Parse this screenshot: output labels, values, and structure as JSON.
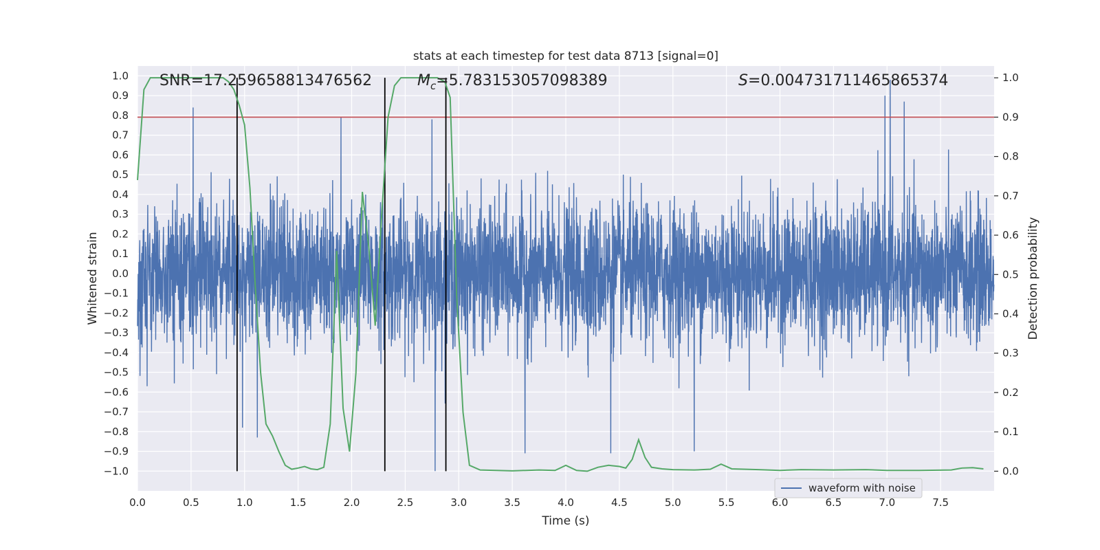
{
  "chart_data": {
    "type": "line",
    "title": "stats at each timestep for test data 8713 [signal=0]",
    "xlabel": "Time (s)",
    "ylabel_left": "Whitened strain",
    "ylabel_right": "Detection probability",
    "xlim": [
      0,
      8
    ],
    "ylim_left": [
      -1.1,
      1.05
    ],
    "ylim_right": [
      -0.05,
      1.03
    ],
    "x_ticks": [
      "0.0",
      "0.5",
      "1.0",
      "1.5",
      "2.0",
      "2.5",
      "3.0",
      "3.5",
      "4.0",
      "4.5",
      "5.0",
      "5.5",
      "6.0",
      "6.5",
      "7.0",
      "7.5"
    ],
    "x_tick_values": [
      0,
      0.5,
      1,
      1.5,
      2,
      2.5,
      3,
      3.5,
      4,
      4.5,
      5,
      5.5,
      6,
      6.5,
      7,
      7.5
    ],
    "y_left_ticks": [
      "1.0",
      "0.9",
      "0.8",
      "0.7",
      "0.6",
      "0.5",
      "0.4",
      "0.3",
      "0.2",
      "0.1",
      "0.0",
      "−0.1",
      "−0.2",
      "−0.3",
      "−0.4",
      "−0.5",
      "−0.6",
      "−0.7",
      "−0.8",
      "−0.9",
      "−1.0"
    ],
    "y_left_tick_values": [
      1.0,
      0.9,
      0.8,
      0.7,
      0.6,
      0.5,
      0.4,
      0.3,
      0.2,
      0.1,
      0.0,
      -0.1,
      -0.2,
      -0.3,
      -0.4,
      -0.5,
      -0.6,
      -0.7,
      -0.8,
      -0.9,
      -1.0
    ],
    "y_right_ticks": [
      "1.0",
      "0.9",
      "0.8",
      "0.7",
      "0.6",
      "0.5",
      "0.4",
      "0.3",
      "0.2",
      "0.1",
      "0.0"
    ],
    "y_right_tick_values": [
      1.0,
      0.9,
      0.8,
      0.7,
      0.6,
      0.5,
      0.4,
      0.3,
      0.2,
      0.1,
      0.0
    ],
    "annotations": {
      "snr": "SNR=17.259658813476562",
      "mc_symbol": "M",
      "mc_sub": "c",
      "mc_value": "=5.783153057098389",
      "s_symbol": "S",
      "s_value": "=0.004731711465865374"
    },
    "legend": {
      "label": "waveform with noise",
      "placement": "lower-right"
    },
    "threshold": {
      "value": 0.9,
      "axis": "right",
      "color": "#c44e52"
    },
    "vertical_markers": [
      0.93,
      2.31,
      2.88
    ],
    "waveform": {
      "name": "waveform with noise",
      "color": "#4c72b0",
      "sample_rate": 512,
      "envelope_typical": 0.42,
      "notable_peaks": [
        {
          "t": 0.52,
          "v": 0.84
        },
        {
          "t": 2.75,
          "v": 0.78
        },
        {
          "t": 7.03,
          "v": 0.98
        },
        {
          "t": 6.98,
          "v": 0.9
        },
        {
          "t": 7.16,
          "v": 0.87
        },
        {
          "t": 2.78,
          "v": -1.0
        },
        {
          "t": 5.2,
          "v": -0.9
        },
        {
          "t": 4.42,
          "v": -0.91
        },
        {
          "t": 3.62,
          "v": -0.91
        },
        {
          "t": 1.9,
          "v": 0.79
        },
        {
          "t": 0.98,
          "v": -0.78
        },
        {
          "t": 1.12,
          "v": -0.83
        }
      ]
    },
    "probability": {
      "color": "#55a868",
      "t": [
        0.0,
        0.06,
        0.12,
        0.2,
        0.4,
        0.6,
        0.8,
        0.85,
        0.9,
        0.95,
        1.0,
        1.05,
        1.1,
        1.15,
        1.2,
        1.26,
        1.32,
        1.38,
        1.44,
        1.5,
        1.56,
        1.62,
        1.68,
        1.74,
        1.8,
        1.86,
        1.92,
        1.98,
        2.04,
        2.1,
        2.16,
        2.22,
        2.28,
        2.34,
        2.4,
        2.46,
        2.52,
        2.6,
        2.7,
        2.8,
        2.87,
        2.92,
        2.98,
        3.04,
        3.1,
        3.2,
        3.5,
        3.75,
        3.9,
        4.0,
        4.1,
        4.2,
        4.3,
        4.4,
        4.5,
        4.56,
        4.62,
        4.68,
        4.74,
        4.8,
        4.9,
        5.0,
        5.2,
        5.35,
        5.45,
        5.55,
        5.8,
        6.0,
        6.2,
        6.5,
        6.8,
        7.0,
        7.3,
        7.6,
        7.7,
        7.8,
        7.9
      ],
      "values": [
        0.74,
        0.97,
        1.0,
        1.0,
        1.0,
        1.0,
        1.0,
        0.99,
        0.97,
        0.93,
        0.88,
        0.72,
        0.47,
        0.25,
        0.12,
        0.09,
        0.05,
        0.015,
        0.005,
        0.008,
        0.012,
        0.006,
        0.004,
        0.01,
        0.12,
        0.56,
        0.16,
        0.05,
        0.25,
        0.71,
        0.57,
        0.37,
        0.65,
        0.9,
        0.98,
        1.0,
        1.0,
        1.0,
        1.0,
        1.0,
        0.99,
        0.95,
        0.45,
        0.15,
        0.015,
        0.003,
        0.001,
        0.003,
        0.002,
        0.015,
        0.002,
        0.0,
        0.01,
        0.015,
        0.012,
        0.008,
        0.03,
        0.08,
        0.035,
        0.01,
        0.006,
        0.004,
        0.003,
        0.005,
        0.018,
        0.006,
        0.004,
        0.002,
        0.004,
        0.003,
        0.004,
        0.002,
        0.002,
        0.003,
        0.008,
        0.009,
        0.006
      ]
    }
  }
}
